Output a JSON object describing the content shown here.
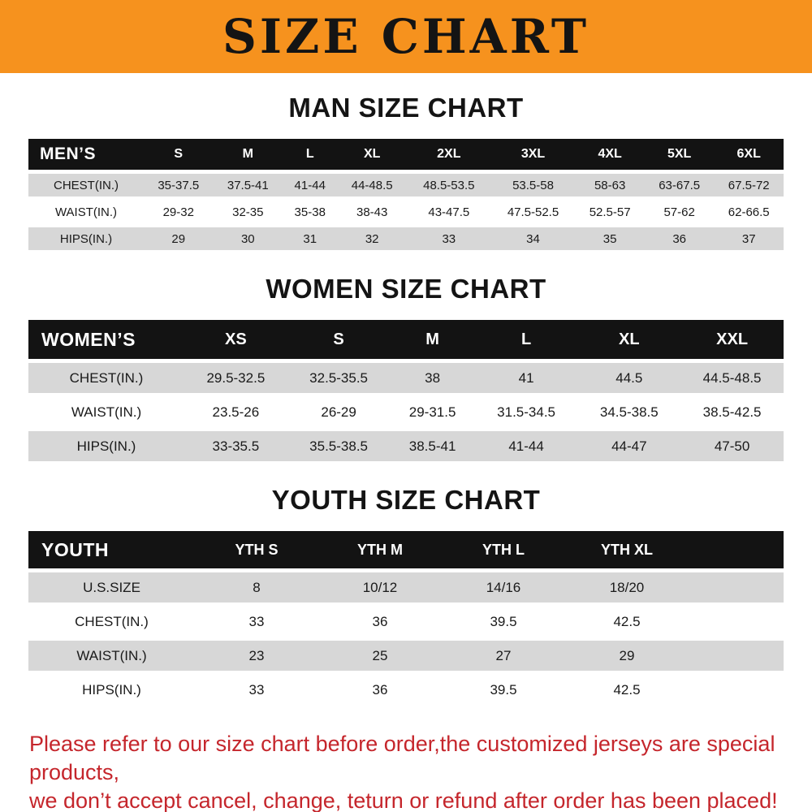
{
  "banner": {
    "title": "SIZE CHART"
  },
  "chart_data": [
    {
      "type": "table",
      "title": "MAN SIZE CHART",
      "columns": [
        "MEN’S",
        "S",
        "M",
        "L",
        "XL",
        "2XL",
        "3XL",
        "4XL",
        "5XL",
        "6XL"
      ],
      "rows": [
        [
          "CHEST(IN.)",
          "35-37.5",
          "37.5-41",
          "41-44",
          "44-48.5",
          "48.5-53.5",
          "53.5-58",
          "58-63",
          "63-67.5",
          "67.5-72"
        ],
        [
          "WAIST(IN.)",
          "29-32",
          "32-35",
          "35-38",
          "38-43",
          "43-47.5",
          "47.5-52.5",
          "52.5-57",
          "57-62",
          "62-66.5"
        ],
        [
          "HIPS(IN.)",
          "29",
          "30",
          "31",
          "32",
          "33",
          "34",
          "35",
          "36",
          "37"
        ]
      ]
    },
    {
      "type": "table",
      "title": "WOMEN SIZE CHART",
      "columns": [
        "WOMEN’S",
        "XS",
        "S",
        "M",
        "L",
        "XL",
        "XXL"
      ],
      "rows": [
        [
          "CHEST(IN.)",
          "29.5-32.5",
          "32.5-35.5",
          "38",
          "41",
          "44.5",
          "44.5-48.5"
        ],
        [
          "WAIST(IN.)",
          "23.5-26",
          "26-29",
          "29-31.5",
          "31.5-34.5",
          "34.5-38.5",
          "38.5-42.5"
        ],
        [
          "HIPS(IN.)",
          "33-35.5",
          "35.5-38.5",
          "38.5-41",
          "41-44",
          "44-47",
          "47-50"
        ]
      ]
    },
    {
      "type": "table",
      "title": "YOUTH SIZE CHART",
      "columns": [
        "YOUTH",
        "YTH S",
        "YTH M",
        "YTH L",
        "YTH XL"
      ],
      "rows": [
        [
          "U.S.SIZE",
          "8",
          "10/12",
          "14/16",
          "18/20"
        ],
        [
          "CHEST(IN.)",
          "33",
          "36",
          "39.5",
          "42.5"
        ],
        [
          "WAIST(IN.)",
          "23",
          "25",
          "27",
          "29"
        ],
        [
          "HIPS(IN.)",
          "33",
          "36",
          "39.5",
          "42.5"
        ]
      ]
    }
  ],
  "footer": {
    "line1": "Please refer to our size chart before order,the customized jerseys are special products,",
    "line2": "we don’t accept cancel, change, teturn or refund after order has been placed!"
  },
  "colors": {
    "banner_bg": "#f6921e",
    "header_bg": "#131313",
    "row_alt": "#d7d7d7",
    "footer_text": "#c5262c"
  }
}
